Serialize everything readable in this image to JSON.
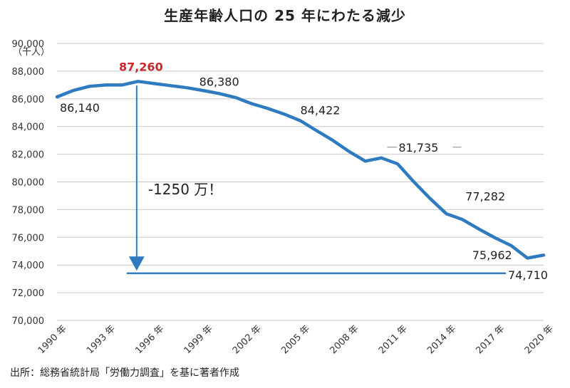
{
  "chart_data": {
    "type": "line",
    "title": "生産年齢人口の 25 年にわたる減少",
    "ylabel": "（千人）",
    "xlabel": "",
    "ylim": [
      70000,
      90000
    ],
    "grid": true,
    "yticks": [
      "90,000",
      "88,000",
      "86,000",
      "84,000",
      "82,000",
      "80,000",
      "78,000",
      "76,000",
      "74,000",
      "72,000",
      "70,000"
    ],
    "xticks": [
      "1990 年",
      "1993 年",
      "1996 年",
      "1999 年",
      "2002 年",
      "2005 年",
      "2008 年",
      "2011 年",
      "2014 年",
      "2017 年",
      "2020 年"
    ],
    "series": [
      {
        "name": "",
        "color": "#2e7cbf",
        "x": [
          1990,
          1991,
          1992,
          1993,
          1994,
          1995,
          1996,
          1997,
          1998,
          1999,
          2000,
          2001,
          2002,
          2003,
          2004,
          2005,
          2006,
          2007,
          2008,
          2009,
          2010,
          2011,
          2012,
          2013,
          2014,
          2015,
          2016,
          2017,
          2018,
          2019,
          2020
        ],
        "values": [
          86140,
          86600,
          86900,
          87000,
          87000,
          87260,
          87100,
          86950,
          86800,
          86600,
          86380,
          86100,
          85650,
          85300,
          84900,
          84422,
          83700,
          83000,
          82200,
          81500,
          81735,
          81300,
          80000,
          78800,
          77700,
          77282,
          76600,
          75962,
          75400,
          74500,
          74710
        ]
      }
    ],
    "data_labels": [
      {
        "text": "86,140",
        "year": 1990,
        "value": 86140
      },
      {
        "text": "87,260",
        "year": 1995,
        "value": 87260,
        "highlight": true
      },
      {
        "text": "86,380",
        "year": 2000,
        "value": 86380
      },
      {
        "text": "84,422",
        "year": 2005,
        "value": 84422
      },
      {
        "text": "81,735",
        "year": 2010,
        "value": 81735
      },
      {
        "text": "77,282",
        "year": 2015,
        "value": 77282
      },
      {
        "text": "75,962",
        "year": 2017,
        "value": 75962
      },
      {
        "text": "74,710",
        "year": 2020,
        "value": 74710
      }
    ],
    "annotation": {
      "text": "-1250 万！",
      "arrow_from": {
        "year": 1995,
        "value": 87260
      },
      "arrow_to": {
        "year": 1995,
        "value": 74000
      },
      "line_value": 73400,
      "color": "#2e7cbf"
    }
  },
  "source": "出所：総務省統計局「労働力調査」を基に著者作成"
}
